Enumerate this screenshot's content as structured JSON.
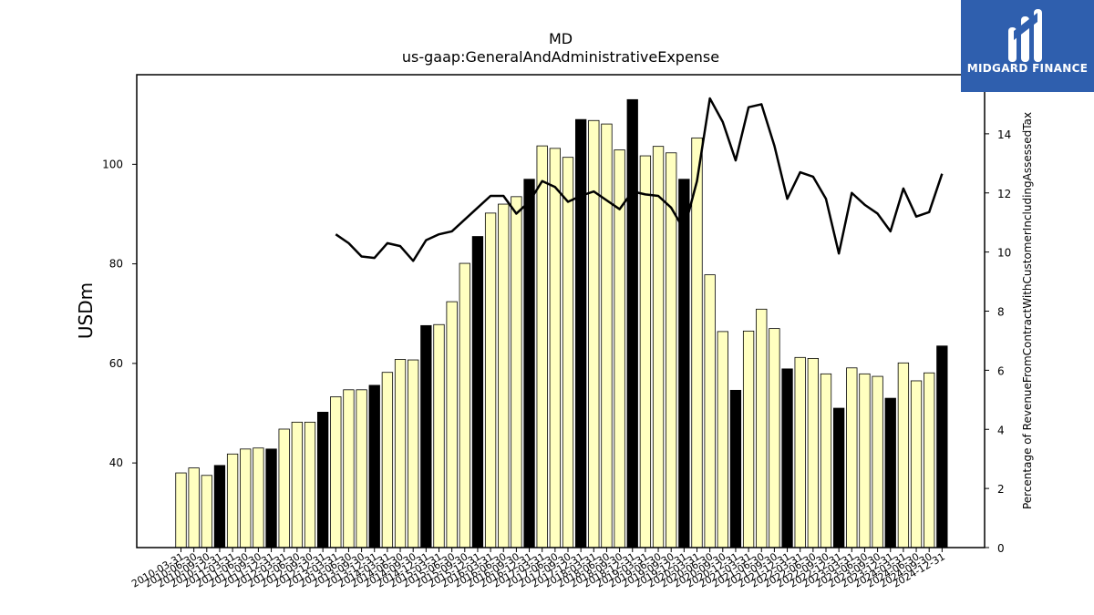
{
  "chart_data": {
    "type": "bar",
    "title": "MD",
    "subtitle": "us-gaap:GeneralAndAdministrativeExpense",
    "ylabel": "USDm",
    "y2label": "Percentage of RevenueFromContractWithCustomerIncludingAssessedTax",
    "ylim": [
      23,
      118
    ],
    "y2lim": [
      0,
      16
    ],
    "yticks": [
      40,
      60,
      80,
      100
    ],
    "y2ticks": [
      0,
      2,
      4,
      6,
      8,
      10,
      12,
      14
    ],
    "grid": false,
    "legend": "none",
    "colors": {
      "bar_quarter": "#ffffc0",
      "bar_year_end": "#000000",
      "line": "#000000"
    },
    "x": [
      "2010-03-31",
      "2010-06-30",
      "2010-09-30",
      "2010-12-31",
      "2011-03-31",
      "2011-06-30",
      "2011-09-30",
      "2011-12-31",
      "2012-03-31",
      "2012-06-30",
      "2012-09-30",
      "2012-12-31",
      "2013-03-31",
      "2013-06-30",
      "2013-09-30",
      "2013-12-31",
      "2014-03-31",
      "2014-06-30",
      "2014-09-30",
      "2014-12-31",
      "2015-03-31",
      "2015-06-30",
      "2015-09-30",
      "2015-12-31",
      "2016-03-31",
      "2016-06-30",
      "2016-09-30",
      "2016-12-31",
      "2017-03-31",
      "2017-06-30",
      "2017-09-30",
      "2017-12-31",
      "2018-03-31",
      "2018-06-30",
      "2018-09-30",
      "2018-12-31",
      "2019-03-31",
      "2019-06-30",
      "2019-09-30",
      "2019-12-31",
      "2020-03-31",
      "2020-06-30",
      "2020-09-30",
      "2020-12-31",
      "2021-03-31",
      "2021-06-30",
      "2021-09-30",
      "2021-12-31",
      "2022-03-31",
      "2022-06-30",
      "2022-09-30",
      "2022-12-31",
      "2023-03-31",
      "2023-06-30",
      "2023-09-30",
      "2023-12-31",
      "2024-03-31",
      "2024-06-30",
      "2024-09-30",
      "2024-12-31"
    ],
    "series": [
      {
        "kind": "bar",
        "values": [
          38,
          39,
          37.5,
          39.5,
          41.8,
          42.8,
          43,
          42.8,
          46.8,
          48.2,
          48.2,
          50.2,
          53.3,
          54.7,
          54.7,
          55.6,
          58.2,
          60.8,
          60.7,
          67.6,
          67.8,
          72.4,
          80.1,
          85.5,
          90.2,
          92,
          93.5,
          97,
          103.7,
          103.2,
          101.4,
          109,
          108.8,
          108.1,
          102.9,
          113,
          101.7,
          103.6,
          102.3,
          97,
          105.3,
          77.8,
          66.4,
          54.6,
          66.5,
          70.9,
          67,
          58.9,
          61.2,
          61,
          57.9,
          51,
          59.1,
          57.9,
          57.4,
          53,
          60.1,
          56.5,
          58.1,
          63.5
        ],
        "year_end": [
          false,
          false,
          false,
          true,
          false,
          false,
          false,
          true,
          false,
          false,
          false,
          true,
          false,
          false,
          false,
          true,
          false,
          false,
          false,
          true,
          false,
          false,
          false,
          true,
          false,
          false,
          false,
          true,
          false,
          false,
          false,
          true,
          false,
          false,
          false,
          true,
          false,
          false,
          false,
          true,
          false,
          false,
          false,
          true,
          false,
          false,
          false,
          true,
          false,
          false,
          false,
          true,
          false,
          false,
          false,
          true,
          false,
          false,
          false,
          true
        ]
      },
      {
        "kind": "line",
        "axis": "y2",
        "values": [
          null,
          null,
          null,
          null,
          null,
          null,
          null,
          null,
          null,
          null,
          null,
          null,
          10.6,
          10.3,
          9.85,
          9.8,
          10.3,
          10.2,
          9.7,
          10.4,
          10.6,
          10.7,
          11.1,
          11.5,
          11.9,
          11.9,
          11.3,
          11.7,
          12.4,
          12.2,
          11.7,
          11.9,
          12.05,
          11.75,
          11.45,
          12.05,
          11.95,
          11.9,
          11.5,
          10.75,
          12.4,
          15.2,
          14.4,
          13.1,
          14.9,
          15.0,
          13.6,
          11.8,
          12.7,
          12.55,
          11.8,
          9.95,
          12.0,
          11.6,
          11.3,
          10.7,
          12.15,
          11.2,
          11.35,
          12.65
        ]
      }
    ]
  },
  "logo": {
    "text": "MIDGARD FINANCE"
  }
}
